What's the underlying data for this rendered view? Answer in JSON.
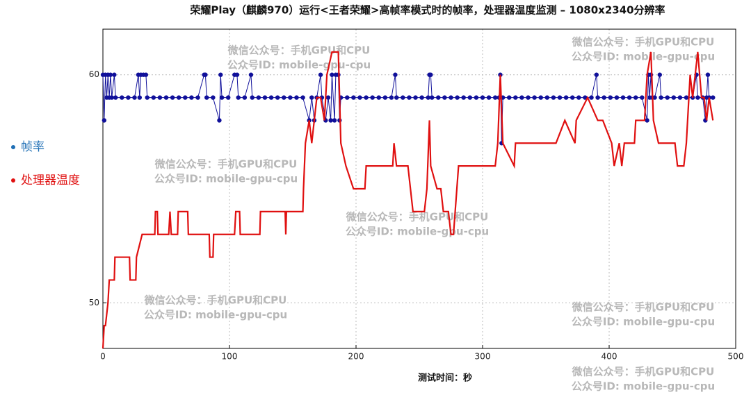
{
  "chart_data": {
    "type": "line",
    "title": "荣耀Play（麒麟970）运行<王者荣耀>高帧率模式时的帧率，处理器温度监测 – 1080x2340分辨率",
    "x_label": "测试时间：秒",
    "xlim": [
      0,
      500
    ],
    "xticks": [
      0,
      100,
      200,
      300,
      400,
      500
    ],
    "ylim": [
      48,
      62
    ],
    "yticks": [
      50,
      60
    ],
    "grid": true,
    "legend": "left",
    "watermarks": [
      "微信公众号：手机GPU和CPU",
      "公众号ID: mobile-gpu-cpu"
    ],
    "series": [
      {
        "name": "帧率",
        "color": "#10109a",
        "label_color": "#1f6fb5",
        "markers": true,
        "x": [
          0,
          1,
          2,
          3,
          4,
          5,
          6,
          7,
          9,
          10,
          15,
          20,
          25,
          28,
          29,
          30,
          32,
          34,
          35,
          40,
          45,
          50,
          55,
          60,
          65,
          70,
          75,
          80,
          81,
          82,
          87,
          92,
          93,
          94,
          99,
          104,
          106,
          107,
          112,
          117,
          118,
          123,
          128,
          133,
          138,
          143,
          148,
          153,
          158,
          163,
          165,
          167,
          169,
          172,
          173,
          176,
          178,
          180,
          181,
          183,
          184,
          186,
          187,
          188,
          193,
          198,
          203,
          208,
          213,
          218,
          223,
          228,
          231,
          232,
          237,
          242,
          247,
          252,
          257,
          258,
          259,
          260,
          265,
          270,
          275,
          280,
          285,
          290,
          295,
          300,
          305,
          310,
          313,
          314,
          315,
          316,
          321,
          326,
          331,
          336,
          341,
          346,
          351,
          356,
          361,
          366,
          371,
          376,
          381,
          386,
          390,
          391,
          396,
          401,
          406,
          411,
          416,
          421,
          426,
          430,
          431,
          432,
          433,
          434,
          436,
          440,
          441,
          446,
          451,
          456,
          461,
          466,
          469,
          470,
          474,
          476,
          477,
          478,
          479,
          482
        ],
        "values": [
          60,
          58,
          60,
          59,
          60,
          59,
          60,
          59,
          60,
          59,
          59,
          59,
          59,
          60,
          59,
          60,
          60,
          60,
          59,
          59,
          59,
          59,
          59,
          59,
          59,
          59,
          59,
          60,
          60,
          59,
          59,
          58,
          60,
          59,
          59,
          60,
          60,
          59,
          59,
          60,
          59,
          59,
          59,
          59,
          59,
          59,
          59,
          59,
          59,
          58,
          59,
          58,
          59,
          60,
          59,
          58,
          59,
          58,
          60,
          58,
          60,
          60,
          58,
          59,
          59,
          59,
          59,
          59,
          59,
          59,
          59,
          59,
          60,
          59,
          59,
          59,
          59,
          59,
          59,
          60,
          60,
          59,
          59,
          59,
          59,
          59,
          59,
          59,
          59,
          59,
          59,
          59,
          59,
          60,
          57,
          59,
          59,
          59,
          59,
          59,
          59,
          59,
          59,
          59,
          59,
          59,
          59,
          59,
          59,
          59,
          60,
          59,
          59,
          59,
          59,
          59,
          59,
          59,
          59,
          58,
          60,
          59,
          60,
          59,
          59,
          60,
          59,
          59,
          59,
          59,
          59,
          59,
          60,
          59,
          59,
          58,
          59,
          60,
          59,
          59
        ]
      },
      {
        "name": "处理器温度",
        "color": "#e01010",
        "label_color": "#e01010",
        "markers": false,
        "x": [
          0,
          1,
          2,
          4,
          5,
          9,
          9.5,
          21,
          21.5,
          26,
          26.5,
          31,
          41,
          41.5,
          43,
          43.5,
          52,
          53,
          54,
          59,
          59.5,
          67,
          67.5,
          84,
          84.5,
          87,
          87.5,
          104,
          105,
          108,
          108.5,
          124,
          124.5,
          144,
          144.5,
          145,
          158,
          158.5,
          160,
          163,
          165,
          167,
          169,
          172,
          175,
          177,
          181,
          186,
          188,
          192,
          198,
          207,
          208,
          229,
          230,
          232,
          241,
          243,
          245,
          254,
          256,
          258,
          259,
          264,
          267,
          269,
          273,
          275,
          277,
          281,
          298,
          310,
          312,
          314,
          316,
          325,
          326,
          358,
          365,
          373,
          374,
          383,
          391,
          395,
          402,
          404,
          408,
          410,
          412,
          420,
          421,
          428,
          430,
          433,
          435,
          439,
          452,
          454,
          459,
          461,
          464,
          466,
          468,
          470,
          473,
          475,
          477,
          479,
          482
        ],
        "values": [
          48,
          49,
          49,
          50,
          51,
          51,
          52,
          52,
          51,
          51,
          52,
          53,
          53,
          54,
          54,
          53,
          53,
          54,
          53,
          53,
          54,
          54,
          53,
          53,
          52,
          52,
          53,
          53,
          54,
          54,
          53,
          53,
          54,
          54,
          53,
          54,
          54,
          55,
          57,
          58,
          57,
          58,
          59,
          59,
          58,
          60,
          61,
          61,
          57,
          56,
          55,
          55,
          56,
          56,
          57,
          56,
          56,
          55,
          54,
          54,
          55,
          58,
          56,
          55,
          55,
          54,
          54,
          53,
          53,
          56,
          56,
          56,
          57,
          60,
          57,
          56,
          57,
          57,
          58,
          57,
          58,
          59,
          58,
          58,
          57,
          56,
          57,
          56,
          57,
          57,
          58,
          58,
          60,
          61,
          58,
          57,
          57,
          56,
          56,
          57,
          60,
          59,
          60,
          61,
          59,
          59,
          58,
          59,
          58
        ]
      }
    ]
  }
}
